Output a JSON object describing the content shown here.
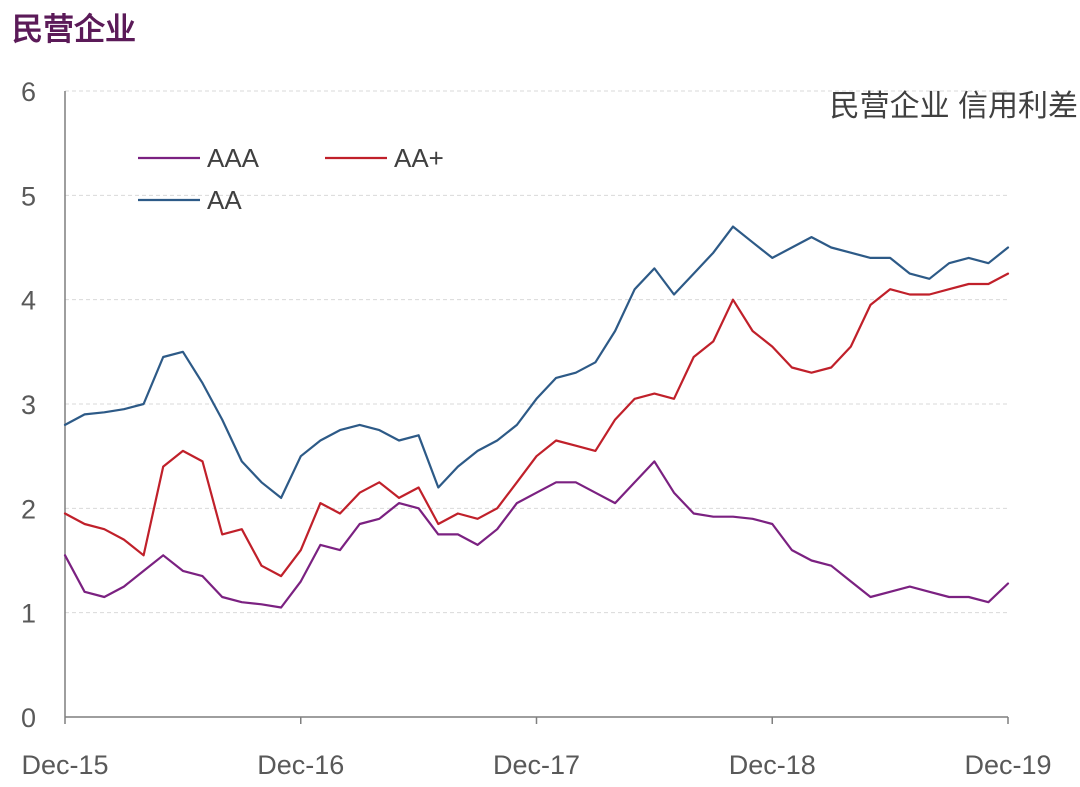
{
  "page": {
    "title": "民营企业"
  },
  "chart_data": {
    "type": "line",
    "title": "民营企业 信用利差",
    "xlabel": "",
    "ylabel": "",
    "ylim": [
      0,
      6
    ],
    "yticks": [
      0,
      1,
      2,
      3,
      4,
      5,
      6
    ],
    "xticks": [
      "Dec-15",
      "Dec-16",
      "Dec-17",
      "Dec-18",
      "Dec-19"
    ],
    "grid": true,
    "legend_position": "top-left",
    "x": [
      "2015-12",
      "2016-01",
      "2016-02",
      "2016-03",
      "2016-04",
      "2016-05",
      "2016-06",
      "2016-07",
      "2016-08",
      "2016-09",
      "2016-10",
      "2016-11",
      "2016-12",
      "2017-01",
      "2017-02",
      "2017-03",
      "2017-04",
      "2017-05",
      "2017-06",
      "2017-07",
      "2017-08",
      "2017-09",
      "2017-10",
      "2017-11",
      "2017-12",
      "2018-01",
      "2018-02",
      "2018-03",
      "2018-04",
      "2018-05",
      "2018-06",
      "2018-07",
      "2018-08",
      "2018-09",
      "2018-10",
      "2018-11",
      "2018-12",
      "2019-01",
      "2019-02",
      "2019-03",
      "2019-04",
      "2019-05",
      "2019-06",
      "2019-07",
      "2019-08",
      "2019-09",
      "2019-10",
      "2019-11",
      "2019-12"
    ],
    "series": [
      {
        "name": "AAA",
        "color": "#7b2181",
        "values": [
          1.55,
          1.2,
          1.15,
          1.25,
          1.4,
          1.55,
          1.4,
          1.35,
          1.15,
          1.1,
          1.08,
          1.05,
          1.3,
          1.65,
          1.6,
          1.85,
          1.9,
          2.05,
          2.0,
          1.75,
          1.75,
          1.65,
          1.8,
          2.05,
          2.15,
          2.25,
          2.25,
          2.15,
          2.05,
          2.25,
          2.45,
          2.15,
          1.95,
          1.92,
          1.92,
          1.9,
          1.85,
          1.6,
          1.5,
          1.45,
          1.3,
          1.15,
          1.2,
          1.25,
          1.2,
          1.15,
          1.15,
          1.1,
          1.28
        ]
      },
      {
        "name": "AA+",
        "color": "#c0202a",
        "values": [
          1.95,
          1.85,
          1.8,
          1.7,
          1.55,
          2.4,
          2.55,
          2.45,
          1.75,
          1.8,
          1.45,
          1.35,
          1.6,
          2.05,
          1.95,
          2.15,
          2.25,
          2.1,
          2.2,
          1.85,
          1.95,
          1.9,
          2.0,
          2.25,
          2.5,
          2.65,
          2.6,
          2.55,
          2.85,
          3.05,
          3.1,
          3.05,
          3.45,
          3.6,
          4.0,
          3.7,
          3.55,
          3.35,
          3.3,
          3.35,
          3.55,
          3.95,
          4.1,
          4.05,
          4.05,
          4.1,
          4.15,
          4.15,
          4.25
        ]
      },
      {
        "name": "AA",
        "color": "#2d5a87",
        "values": [
          2.8,
          2.9,
          2.92,
          2.95,
          3.0,
          3.45,
          3.5,
          3.2,
          2.85,
          2.45,
          2.25,
          2.1,
          2.5,
          2.65,
          2.75,
          2.8,
          2.75,
          2.65,
          2.7,
          2.2,
          2.4,
          2.55,
          2.65,
          2.8,
          3.05,
          3.25,
          3.3,
          3.4,
          3.7,
          4.1,
          4.3,
          4.05,
          4.25,
          4.45,
          4.7,
          4.55,
          4.4,
          4.5,
          4.6,
          4.5,
          4.45,
          4.4,
          4.4,
          4.25,
          4.2,
          4.35,
          4.4,
          4.35,
          4.5
        ]
      }
    ]
  }
}
